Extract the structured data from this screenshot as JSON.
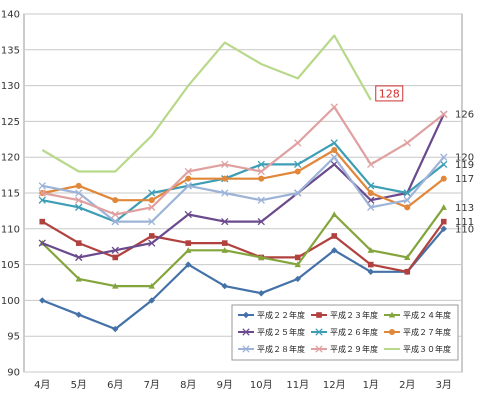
{
  "chart_data": {
    "type": "line",
    "categories": [
      "4月",
      "5月",
      "6月",
      "7月",
      "8月",
      "9月",
      "10月",
      "11月",
      "12月",
      "1月",
      "2月",
      "3月"
    ],
    "ylim": [
      90,
      140
    ],
    "yticks": [
      90,
      95,
      100,
      105,
      110,
      115,
      120,
      125,
      130,
      135,
      140
    ],
    "grid": true,
    "legend_position": "bottom-right",
    "series": [
      {
        "name": "平成２２年度",
        "color": "#4472a8",
        "marker": "diamond",
        "values": [
          100,
          98,
          96,
          100,
          105,
          102,
          101,
          103,
          107,
          104,
          104,
          110
        ]
      },
      {
        "name": "平成２３年度",
        "color": "#b0413e",
        "marker": "square",
        "values": [
          111,
          108,
          106,
          109,
          108,
          108,
          106,
          106,
          109,
          105,
          104,
          111
        ]
      },
      {
        "name": "平成２４年度",
        "color": "#83a53b",
        "marker": "triangle",
        "values": [
          108,
          103,
          102,
          102,
          107,
          107,
          106,
          105,
          112,
          107,
          106,
          113
        ]
      },
      {
        "name": "平成２５年度",
        "color": "#6a4a8c",
        "marker": "x",
        "values": [
          108,
          106,
          107,
          108,
          112,
          111,
          111,
          115,
          119,
          114,
          115,
          126
        ]
      },
      {
        "name": "平成２６年度",
        "color": "#3d9db5",
        "marker": "x",
        "values": [
          114,
          113,
          111,
          115,
          116,
          117,
          119,
          119,
          122,
          116,
          115,
          119
        ]
      },
      {
        "name": "平成２７年度",
        "color": "#e0873a",
        "marker": "circle",
        "values": [
          115,
          116,
          114,
          114,
          117,
          117,
          117,
          118,
          121,
          115,
          113,
          117
        ]
      },
      {
        "name": "平成２８年度",
        "color": "#9db3d8",
        "marker": "x",
        "values": [
          116,
          115,
          111,
          111,
          116,
          115,
          114,
          115,
          120,
          113,
          114,
          120
        ]
      },
      {
        "name": "平成２９年度",
        "color": "#e0a0a0",
        "marker": "x",
        "values": [
          115,
          114,
          112,
          113,
          118,
          119,
          118,
          122,
          127,
          119,
          122,
          126
        ]
      },
      {
        "name": "平成３０年度",
        "color": "#b8d88a",
        "marker": "none",
        "values": [
          121,
          118,
          118,
          123,
          130,
          136,
          133,
          131,
          137,
          128,
          null,
          null
        ]
      }
    ],
    "end_labels": [
      {
        "text": "126",
        "value": 126
      },
      {
        "text": "120",
        "value": 120
      },
      {
        "text": "119",
        "value": 119
      },
      {
        "text": "117",
        "value": 117
      },
      {
        "text": "113",
        "value": 113
      },
      {
        "text": "111",
        "value": 111
      },
      {
        "text": "110",
        "value": 110
      }
    ],
    "callout": {
      "text": "128",
      "category": "1月",
      "value": 128,
      "color": "#d03030"
    }
  }
}
